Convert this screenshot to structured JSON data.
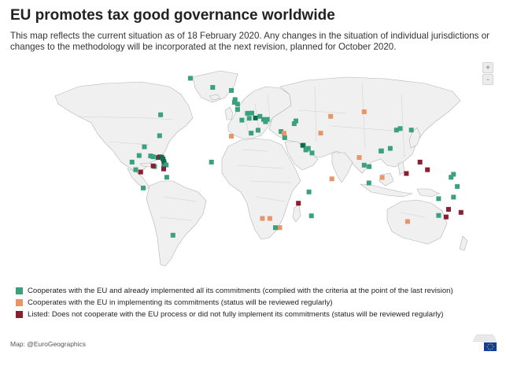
{
  "header": {
    "title": "EU promotes tax good governance worldwide",
    "subtitle": "This map reflects the current situation as of 18 February 2020. Any changes in the situation of individual jurisdictions or changes to the methodology will be incorporated at the next revision, planned for October 2020."
  },
  "zoom": {
    "in_label": "+",
    "out_label": "-"
  },
  "colors": {
    "land": "#f0f0f0",
    "border": "#b4b4b4",
    "green": "#3aa17e",
    "orange": "#e8956a",
    "red": "#8b1f32",
    "dark_green": "#0f6b4a"
  },
  "legend": {
    "items": [
      {
        "color": "#3aa17e",
        "label": "Cooperates with the EU and already implemented all its commitments (complied with the criteria at the point of the last revision)"
      },
      {
        "color": "#e8956a",
        "label": "Cooperates with the EU in implementing its commitments (status will be reviewed regularly)"
      },
      {
        "color": "#8b1f32",
        "label": "Listed: Does not cooperate with the EU process or did not fully implement its commitments (status will be reviewed regularly)"
      }
    ]
  },
  "credit": "Map: @EuroGeographics",
  "markers": [
    {
      "lon": -40,
      "lat": 70,
      "status": "green"
    },
    {
      "lon": -22,
      "lat": 64,
      "status": "green"
    },
    {
      "lon": -7,
      "lat": 62,
      "status": "green"
    },
    {
      "lon": -4,
      "lat": 56,
      "status": "green"
    },
    {
      "lon": -2,
      "lat": 53,
      "status": "green"
    },
    {
      "lon": -2,
      "lat": 49.5,
      "status": "green"
    },
    {
      "lon": -4.5,
      "lat": 54.2,
      "status": "green"
    },
    {
      "lon": 6,
      "lat": 47,
      "status": "green"
    },
    {
      "lon": 9.5,
      "lat": 47.1,
      "status": "green"
    },
    {
      "lon": 12.4,
      "lat": 43.9,
      "status": "dark_green"
    },
    {
      "lon": 14.5,
      "lat": 35.9,
      "status": "green"
    },
    {
      "lon": 16,
      "lat": 45,
      "status": "green"
    },
    {
      "lon": 20.5,
      "lat": 41.5,
      "status": "green"
    },
    {
      "lon": 19,
      "lat": 43,
      "status": "green"
    },
    {
      "lon": 22,
      "lat": 43,
      "status": "green"
    },
    {
      "lon": 33,
      "lat": 35,
      "status": "green"
    },
    {
      "lon": 43.7,
      "lat": 40.2,
      "status": "green"
    },
    {
      "lon": 45,
      "lat": 42,
      "status": "green"
    },
    {
      "lon": 7.4,
      "lat": 43.7,
      "status": "green"
    },
    {
      "lon": 1.5,
      "lat": 42.5,
      "status": "green"
    },
    {
      "lon": -64,
      "lat": 46,
      "status": "green"
    },
    {
      "lon": -64.8,
      "lat": 32.3,
      "status": "green"
    },
    {
      "lon": -77,
      "lat": 25,
      "status": "green"
    },
    {
      "lon": -81.3,
      "lat": 19.3,
      "status": "green"
    },
    {
      "lon": -87,
      "lat": 15,
      "status": "green"
    },
    {
      "lon": -84,
      "lat": 10,
      "status": "green"
    },
    {
      "lon": -80,
      "lat": 8.5,
      "status": "red"
    },
    {
      "lon": -72,
      "lat": 19,
      "status": "green"
    },
    {
      "lon": -70,
      "lat": 18.5,
      "status": "green"
    },
    {
      "lon": -66,
      "lat": 18,
      "status": "dark_green"
    },
    {
      "lon": -64.6,
      "lat": 18.4,
      "status": "red"
    },
    {
      "lon": -63,
      "lat": 18.2,
      "status": "dark_green"
    },
    {
      "lon": -62,
      "lat": 17,
      "status": "dark_green"
    },
    {
      "lon": -61.4,
      "lat": 15.4,
      "status": "dark_green"
    },
    {
      "lon": -61,
      "lat": 14,
      "status": "dark_green"
    },
    {
      "lon": -59.5,
      "lat": 13.1,
      "status": "green"
    },
    {
      "lon": -61.5,
      "lat": 12,
      "status": "green"
    },
    {
      "lon": -61.5,
      "lat": 10.5,
      "status": "red"
    },
    {
      "lon": -68.9,
      "lat": 12.1,
      "status": "green"
    },
    {
      "lon": -70,
      "lat": 12.5,
      "status": "red"
    },
    {
      "lon": -59,
      "lat": 5,
      "status": "green"
    },
    {
      "lon": -78,
      "lat": -2,
      "status": "green"
    },
    {
      "lon": -54,
      "lat": -33,
      "status": "green"
    },
    {
      "lon": -23,
      "lat": 15,
      "status": "green"
    },
    {
      "lon": -7,
      "lat": 32,
      "status": "orange"
    },
    {
      "lon": 9,
      "lat": 34,
      "status": "green"
    },
    {
      "lon": 36,
      "lat": 31,
      "status": "green"
    },
    {
      "lon": 35.5,
      "lat": 33.9,
      "status": "orange"
    },
    {
      "lon": 51,
      "lat": 26,
      "status": "green"
    },
    {
      "lon": 55,
      "lat": 24,
      "status": "green"
    },
    {
      "lon": 50.5,
      "lat": 26,
      "status": "dark_green"
    },
    {
      "lon": 53,
      "lat": 23,
      "status": "green"
    },
    {
      "lon": 58,
      "lat": 21,
      "status": "green"
    },
    {
      "lon": 57.5,
      "lat": -20.3,
      "status": "green"
    },
    {
      "lon": 55.5,
      "lat": -4.6,
      "status": "green"
    },
    {
      "lon": 47,
      "lat": -12,
      "status": "red"
    },
    {
      "lon": 32,
      "lat": -28,
      "status": "orange"
    },
    {
      "lon": 18,
      "lat": -22,
      "status": "orange"
    },
    {
      "lon": 24,
      "lat": -22,
      "status": "orange"
    },
    {
      "lon": 28.5,
      "lat": -28,
      "status": "green"
    },
    {
      "lon": 74,
      "lat": 4,
      "status": "orange"
    },
    {
      "lon": 73,
      "lat": 45,
      "status": "orange"
    },
    {
      "lon": 96,
      "lat": 18,
      "status": "orange"
    },
    {
      "lon": 100,
      "lat": 13,
      "status": "green"
    },
    {
      "lon": 103.8,
      "lat": 1.3,
      "status": "green"
    },
    {
      "lon": 104,
      "lat": 12,
      "status": "green"
    },
    {
      "lon": 114,
      "lat": 22.3,
      "status": "green"
    },
    {
      "lon": 113.5,
      "lat": 22.2,
      "status": "green"
    },
    {
      "lon": 121,
      "lat": 24,
      "status": "green"
    },
    {
      "lon": 126,
      "lat": 36,
      "status": "green"
    },
    {
      "lon": 129,
      "lat": 37,
      "status": "green"
    },
    {
      "lon": 138,
      "lat": 36,
      "status": "green"
    },
    {
      "lon": 114.5,
      "lat": 4.9,
      "status": "orange"
    },
    {
      "lon": 134,
      "lat": 7.5,
      "status": "red"
    },
    {
      "lon": 145,
      "lat": 15,
      "status": "red"
    },
    {
      "lon": 151,
      "lat": 10,
      "status": "red"
    },
    {
      "lon": 170,
      "lat": 5,
      "status": "green"
    },
    {
      "lon": 175,
      "lat": -1,
      "status": "green"
    },
    {
      "lon": 172,
      "lat": -8,
      "status": "green"
    },
    {
      "lon": 172,
      "lat": 7,
      "status": "green"
    },
    {
      "lon": 166,
      "lat": -21,
      "status": "red"
    },
    {
      "lon": 160,
      "lat": -9,
      "status": "green"
    },
    {
      "lon": 168,
      "lat": -16,
      "status": "red"
    },
    {
      "lon": 178,
      "lat": -18,
      "status": "red"
    },
    {
      "lon": 160,
      "lat": -20,
      "status": "green"
    },
    {
      "lon": 135,
      "lat": -24,
      "status": "orange"
    },
    {
      "lon": 65,
      "lat": 34,
      "status": "orange"
    },
    {
      "lon": 100,
      "lat": 48,
      "status": "orange"
    }
  ]
}
